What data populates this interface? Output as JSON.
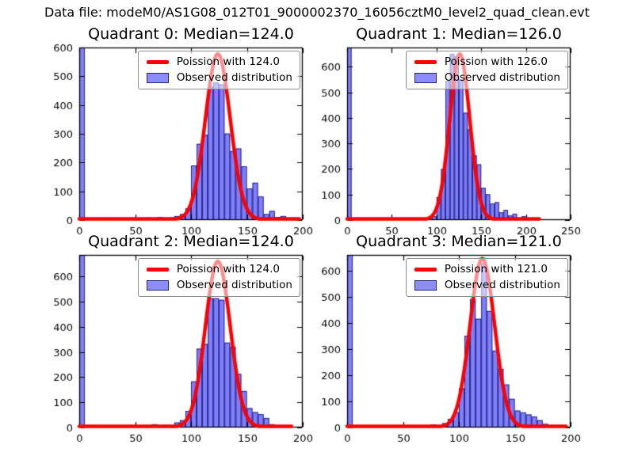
{
  "figure": {
    "suptitle": "Data file: modeM0/AS1G08_012T01_9000002370_16056cztM0_level2_quad_clean.evt"
  },
  "colors": {
    "histogram_fill": "rgba(0,0,255,0.5)",
    "histogram_edge": "#26267d",
    "curve": "#ff0000",
    "axes": "#000000",
    "tick_label": "#000000"
  },
  "chart_data": [
    {
      "type": "histogram",
      "title": "Quadrant 0: Median=124.0",
      "median": 124.0,
      "legend": [
        "Poission with 124.0",
        "Observed distribution"
      ],
      "legend_loc": "upper right",
      "grid": false,
      "xlim": [
        0,
        200
      ],
      "ylim": [
        0,
        600
      ],
      "xticks": [
        0,
        50,
        100,
        150,
        200
      ],
      "yticks": [
        0,
        100,
        200,
        300,
        400,
        500,
        600
      ],
      "bin_width": 5,
      "bins": {
        "starts": [
          0,
          60,
          65,
          70,
          75,
          80,
          85,
          90,
          95,
          100,
          105,
          110,
          115,
          120,
          125,
          130,
          135,
          140,
          145,
          150,
          155,
          160,
          165,
          170,
          175,
          180,
          185,
          190
        ],
        "counts": [
          600,
          9,
          7,
          11,
          5,
          9,
          14,
          21,
          41,
          190,
          265,
          297,
          464,
          478,
          472,
          301,
          240,
          249,
          187,
          110,
          130,
          82,
          21,
          32,
          11,
          14,
          3,
          5
        ]
      },
      "fit_curve": {
        "type": "poisson",
        "mu": 124.0,
        "peak": 578,
        "x_end": 197
      }
    },
    {
      "type": "histogram",
      "title": "Quadrant 1: Median=126.0",
      "median": 126.0,
      "legend": [
        "Poission with 126.0",
        "Observed distribution"
      ],
      "legend_loc": "upper right",
      "grid": false,
      "xlim": [
        0,
        250
      ],
      "ylim": [
        0,
        675
      ],
      "xticks": [
        0,
        50,
        100,
        150,
        200,
        250
      ],
      "yticks": [
        0,
        100,
        200,
        300,
        400,
        500,
        600
      ],
      "bin_width": 5,
      "bins": {
        "starts": [
          0,
          65,
          75,
          90,
          95,
          100,
          105,
          110,
          115,
          120,
          125,
          130,
          135,
          140,
          145,
          150,
          155,
          160,
          165,
          170,
          175,
          180,
          185,
          190,
          195,
          200,
          210
        ],
        "counts": [
          675,
          8,
          6,
          5,
          15,
          90,
          200,
          545,
          650,
          640,
          550,
          420,
          355,
          253,
          218,
          126,
          101,
          65,
          70,
          30,
          40,
          18,
          25,
          8,
          15,
          5,
          8
        ]
      },
      "fit_curve": {
        "type": "poisson",
        "mu": 126.0,
        "peak": 650,
        "x_end": 215
      }
    },
    {
      "type": "histogram",
      "title": "Quadrant 2: Median=124.0",
      "median": 124.0,
      "legend": [
        "Poission with 124.0",
        "Observed distribution"
      ],
      "legend_loc": "upper right",
      "grid": false,
      "xlim": [
        0,
        200
      ],
      "ylim": [
        0,
        685
      ],
      "xticks": [
        0,
        50,
        100,
        150,
        200
      ],
      "yticks": [
        0,
        100,
        200,
        300,
        400,
        500,
        600
      ],
      "bin_width": 5,
      "bins": {
        "starts": [
          0,
          65,
          70,
          75,
          80,
          85,
          90,
          95,
          100,
          105,
          110,
          115,
          120,
          125,
          130,
          135,
          140,
          145,
          150,
          155,
          160,
          165,
          170,
          175,
          180,
          185
        ],
        "counts": [
          685,
          13,
          7,
          10,
          7,
          20,
          29,
          66,
          183,
          313,
          332,
          513,
          513,
          507,
          337,
          321,
          213,
          145,
          77,
          61,
          53,
          38,
          13,
          7,
          2,
          5
        ]
      },
      "fit_curve": {
        "type": "poisson",
        "mu": 124.0,
        "peak": 660,
        "x_end": 190
      }
    },
    {
      "type": "histogram",
      "title": "Quadrant 3: Median=121.0",
      "median": 121.0,
      "legend": [
        "Poission with 121.0",
        "Observed distribution"
      ],
      "legend_loc": "upper right",
      "grid": false,
      "xlim": [
        0,
        200
      ],
      "ylim": [
        0,
        662
      ],
      "xticks": [
        0,
        50,
        100,
        150,
        200
      ],
      "yticks": [
        0,
        100,
        200,
        300,
        400,
        500,
        600
      ],
      "bin_width": 5,
      "bins": {
        "starts": [
          0,
          70,
          75,
          80,
          85,
          90,
          95,
          100,
          105,
          110,
          115,
          120,
          125,
          130,
          135,
          140,
          145,
          150,
          155,
          160,
          165,
          170,
          175,
          180,
          190
        ],
        "counts": [
          662,
          7,
          12,
          9,
          17,
          33,
          59,
          151,
          352,
          493,
          417,
          630,
          447,
          295,
          225,
          165,
          110,
          65,
          58,
          50,
          42,
          28,
          14,
          6,
          8
        ]
      },
      "fit_curve": {
        "type": "poisson",
        "mu": 121.0,
        "peak": 648,
        "x_end": 196
      }
    }
  ]
}
